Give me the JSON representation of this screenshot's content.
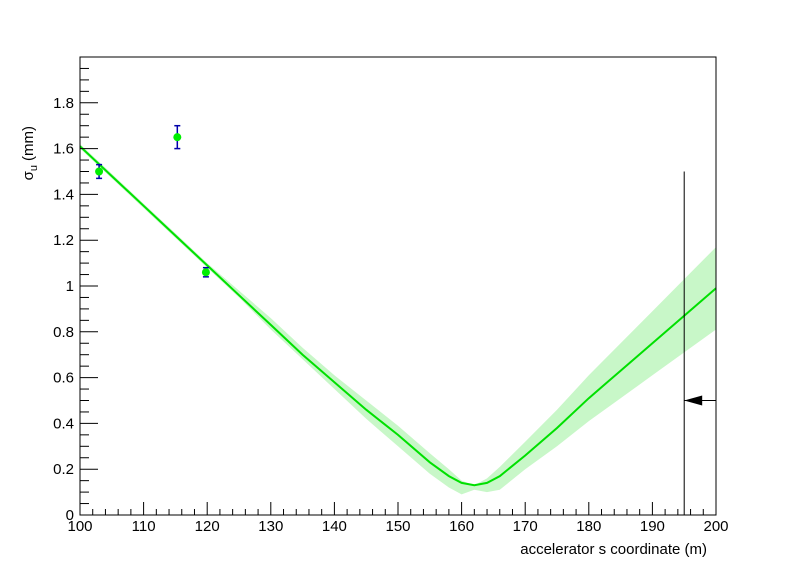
{
  "chart_data": {
    "type": "line",
    "xlabel": "accelerator s coordinate (m)",
    "ylabel": "σ_u (mm)",
    "ylabel_main": "σ",
    "ylabel_sub": "u",
    "ylabel_rest": "(mm)",
    "xlim": [
      100,
      200
    ],
    "ylim": [
      0,
      2.0
    ],
    "x_ticks": [
      100,
      110,
      120,
      130,
      140,
      150,
      160,
      170,
      180,
      190,
      200
    ],
    "x_tick_labels": [
      "100",
      "110",
      "120",
      "130",
      "140",
      "150",
      "160",
      "170",
      "180",
      "190",
      "200"
    ],
    "y_ticks": [
      0,
      0.2,
      0.4,
      0.6,
      0.8,
      1.0,
      1.2,
      1.4,
      1.6,
      1.8
    ],
    "y_tick_labels": [
      "0",
      "0.2",
      "0.4",
      "0.6",
      "0.8",
      "1",
      "1.2",
      "1.4",
      "1.6",
      "1.8"
    ],
    "grid": false,
    "legend": "none",
    "series": [
      {
        "kind": "fit_curve",
        "color": "#00e000",
        "band_color": "#c8f7c8",
        "x": [
          100,
          105,
          110,
          115,
          120,
          125,
          130,
          135,
          140,
          145,
          150,
          155,
          158,
          160,
          162,
          164,
          166,
          170,
          175,
          180,
          185,
          190,
          195,
          200
        ],
        "y": [
          1.61,
          1.48,
          1.35,
          1.22,
          1.09,
          0.96,
          0.83,
          0.7,
          0.58,
          0.46,
          0.35,
          0.23,
          0.17,
          0.14,
          0.13,
          0.14,
          0.17,
          0.26,
          0.38,
          0.51,
          0.63,
          0.75,
          0.87,
          0.99
        ],
        "band_upper": [
          1.62,
          1.49,
          1.36,
          1.23,
          1.1,
          0.98,
          0.86,
          0.73,
          0.61,
          0.5,
          0.39,
          0.27,
          0.2,
          0.15,
          0.13,
          0.16,
          0.21,
          0.32,
          0.46,
          0.61,
          0.75,
          0.89,
          1.03,
          1.17
        ],
        "band_lower": [
          1.6,
          1.47,
          1.34,
          1.21,
          1.08,
          0.95,
          0.81,
          0.68,
          0.55,
          0.42,
          0.3,
          0.18,
          0.12,
          0.09,
          0.11,
          0.1,
          0.11,
          0.2,
          0.3,
          0.41,
          0.51,
          0.61,
          0.71,
          0.81
        ]
      },
      {
        "kind": "measurements",
        "color": "#00ee00",
        "errbar_color": "#0000aa",
        "points": [
          {
            "x": 103,
            "y": 1.5,
            "err": 0.03
          },
          {
            "x": 115.3,
            "y": 1.65,
            "err": 0.05
          },
          {
            "x": 119.8,
            "y": 1.06,
            "err": 0.02
          }
        ]
      }
    ],
    "annotations": [
      {
        "kind": "vertical_line",
        "x": 195,
        "y_top": 1.5,
        "y_bottom": 0
      },
      {
        "kind": "arrow_left",
        "x_from": 200,
        "x_to": 195,
        "y": 0.5
      }
    ]
  }
}
